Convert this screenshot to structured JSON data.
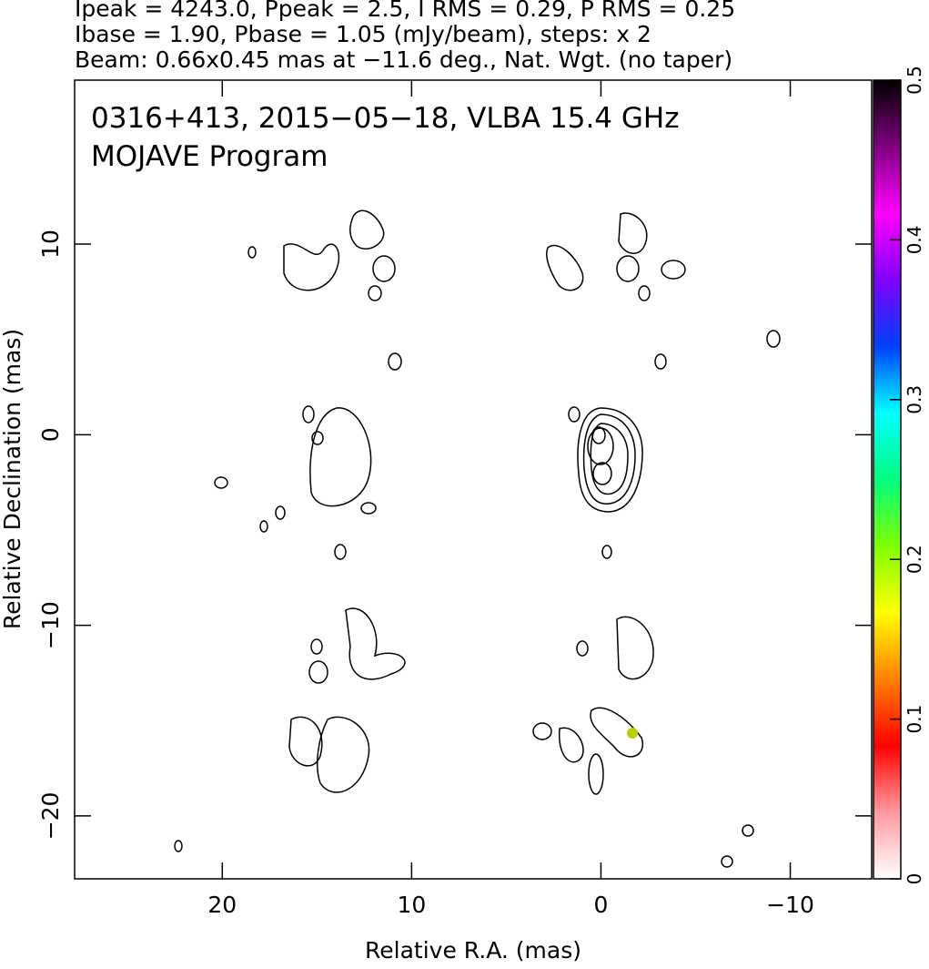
{
  "chart_data": {
    "type": "image",
    "header": [
      "Ipeak = 4243.0, Ppeak = 2.5, I RMS = 0.29, P RMS = 0.25",
      "Ibase = 1.90, Pbase = 1.05 (mJy/beam), steps: x 2",
      "Beam: 0.66x0.45 mas at −11.6 deg., Nat. Wgt. (no taper)"
    ],
    "annotations": [
      "0316+413, 2015−05−18, VLBA 15.4 GHz",
      "MOJAVE Program"
    ],
    "xlabel": "Relative R.A. (mas)",
    "ylabel": "Relative Declination (mas)",
    "xlim": [
      27.8,
      -14.3
    ],
    "ylim": [
      -23.3,
      18.6
    ],
    "xticks": [
      20,
      10,
      0,
      {
        "value": -10,
        "label": "−10"
      }
    ],
    "yticks": [
      10,
      0,
      {
        "value": -10,
        "label": "−10"
      },
      {
        "value": -20,
        "label": "−20"
      }
    ],
    "grid": false,
    "colorbar": {
      "lim": [
        0,
        0.5
      ],
      "ticks": [
        0,
        0.1,
        0.2,
        0.3,
        0.4,
        0.5
      ],
      "colors": [
        "#ffffff",
        "#ff9aa0",
        "#ff0000",
        "#ff8000",
        "#ffff00",
        "#80ff00",
        "#00ff80",
        "#00ffff",
        "#0040ff",
        "#8000ff",
        "#ff00ff",
        "#800080",
        "#000000"
      ]
    }
  }
}
